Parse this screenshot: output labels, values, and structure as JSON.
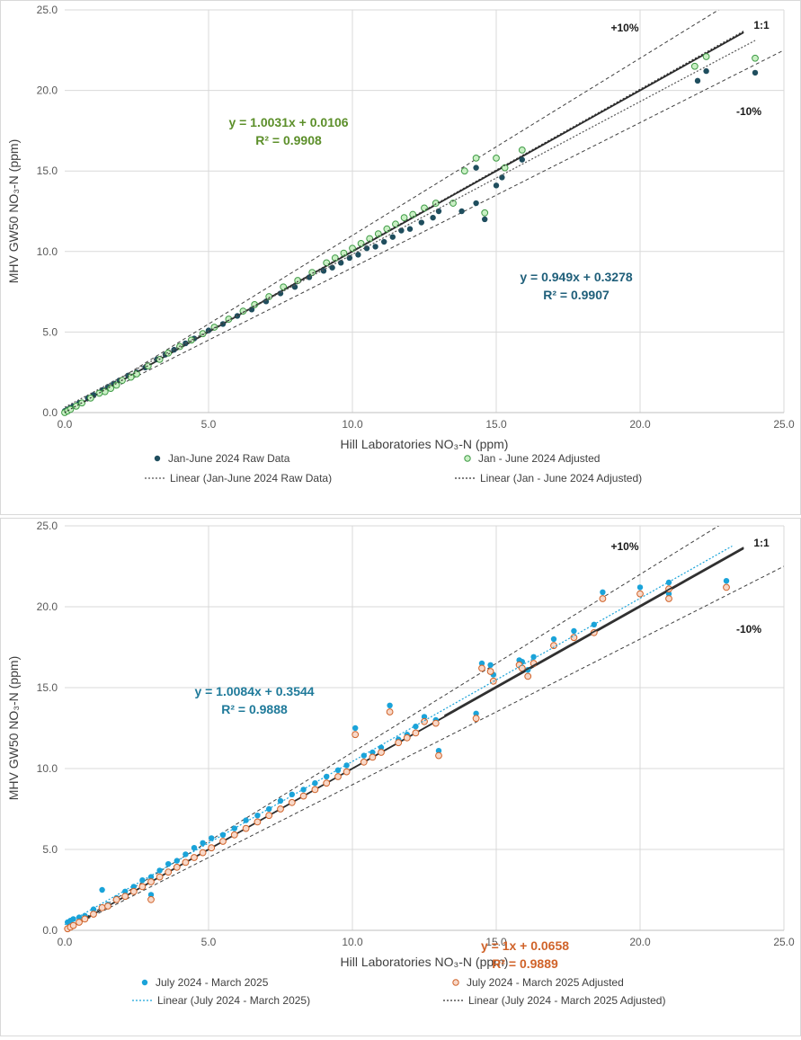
{
  "chart_data": [
    {
      "type": "scatter",
      "xlabel": "Hill Laboratories NO₃-N (ppm)",
      "ylabel": "MHV GW50 NO₃-N (ppm)",
      "xlim": [
        0,
        25
      ],
      "ylim": [
        0,
        25
      ],
      "x_ticks": [
        "0.0",
        "5.0",
        "10.0",
        "15.0",
        "20.0",
        "25.0"
      ],
      "y_ticks": [
        "0.0",
        "5.0",
        "10.0",
        "15.0",
        "20.0",
        "25.0"
      ],
      "grid": true,
      "legend_position": "bottom",
      "reference_labels": {
        "plus10": "+10%",
        "one_to_one": "1:1",
        "minus10": "-10%"
      },
      "equations": [
        {
          "line1": "y = 1.0031x + 0.0106",
          "line2": "R² = 0.9908",
          "color": "#5c8f2a"
        },
        {
          "line1": "y = 0.949x + 0.3278",
          "line2": "R² = 0.9907",
          "color": "#1f5f7a"
        }
      ],
      "legend": [
        {
          "label": "Jan-June 2024 Raw Data",
          "kind": "filled",
          "color": "#1f4e5e"
        },
        {
          "label": "Jan - June 2024 Adjusted",
          "kind": "hollow",
          "color": "#8fcf8f"
        },
        {
          "label": "Linear (Jan-June 2024 Raw Data)",
          "kind": "dotted",
          "color": "#555555"
        },
        {
          "label": "Linear (Jan - June 2024 Adjusted)",
          "kind": "dotted",
          "color": "#333333"
        }
      ],
      "series": [
        {
          "name": "Jan-June 2024 Raw Data",
          "x": [
            0.0,
            0.1,
            0.2,
            0.3,
            0.5,
            0.8,
            1.0,
            1.3,
            1.5,
            1.7,
            1.9,
            2.2,
            2.5,
            2.8,
            3.2,
            3.5,
            3.8,
            4.2,
            4.5,
            5.0,
            5.5,
            6.0,
            6.5,
            7.0,
            7.5,
            8.0,
            8.5,
            9.0,
            9.3,
            9.6,
            9.9,
            10.2,
            10.5,
            10.8,
            11.1,
            11.4,
            11.7,
            12.0,
            12.4,
            12.8,
            13.0,
            13.8,
            14.3,
            14.3,
            14.6,
            15.0,
            15.2,
            15.9,
            22.0,
            22.3,
            24.0
          ],
          "y": [
            0.1,
            0.2,
            0.3,
            0.4,
            0.6,
            0.9,
            1.1,
            1.4,
            1.6,
            1.8,
            2.0,
            2.3,
            2.5,
            2.8,
            3.3,
            3.6,
            3.9,
            4.3,
            4.6,
            5.1,
            5.5,
            6.0,
            6.4,
            6.9,
            7.4,
            7.8,
            8.4,
            8.8,
            9.0,
            9.3,
            9.6,
            9.8,
            10.2,
            10.3,
            10.6,
            10.9,
            11.3,
            11.4,
            11.8,
            12.1,
            12.5,
            12.5,
            13.0,
            15.2,
            12.0,
            14.1,
            14.6,
            15.7,
            20.6,
            21.2,
            21.1
          ]
        },
        {
          "name": "Jan - June 2024 Adjusted",
          "x": [
            0.0,
            0.1,
            0.2,
            0.4,
            0.6,
            0.9,
            1.2,
            1.4,
            1.6,
            1.8,
            2.0,
            2.3,
            2.5,
            2.9,
            3.3,
            3.6,
            4.0,
            4.4,
            4.8,
            5.2,
            5.7,
            6.2,
            6.6,
            7.1,
            7.6,
            8.1,
            8.6,
            9.1,
            9.4,
            9.7,
            10.0,
            10.3,
            10.6,
            10.9,
            11.2,
            11.5,
            11.8,
            12.1,
            12.5,
            12.9,
            13.5,
            13.9,
            14.3,
            14.6,
            15.0,
            15.3,
            15.9,
            21.9,
            22.3,
            24.0
          ],
          "y": [
            0.0,
            0.1,
            0.2,
            0.4,
            0.6,
            0.9,
            1.2,
            1.3,
            1.5,
            1.7,
            2.0,
            2.2,
            2.4,
            2.9,
            3.3,
            3.7,
            4.1,
            4.5,
            4.9,
            5.3,
            5.8,
            6.3,
            6.7,
            7.2,
            7.8,
            8.2,
            8.7,
            9.3,
            9.6,
            9.9,
            10.2,
            10.5,
            10.8,
            11.1,
            11.4,
            11.7,
            12.1,
            12.3,
            12.7,
            13.0,
            13.0,
            15.0,
            15.8,
            12.4,
            15.8,
            15.2,
            16.3,
            21.5,
            22.1,
            22.0
          ]
        }
      ],
      "trendlines": [
        {
          "name": "Linear (Jan-June 2024 Raw Data)",
          "slope": 0.949,
          "intercept": 0.3278
        },
        {
          "name": "Linear (Jan - June 2024 Adjusted)",
          "slope": 1.0031,
          "intercept": 0.0106
        }
      ]
    },
    {
      "type": "scatter",
      "xlabel": "Hill Laboratories NO₃-N (ppm)",
      "ylabel": "MHV GW50 NO₃-N (ppm)",
      "xlim": [
        0,
        25
      ],
      "ylim": [
        0,
        25
      ],
      "x_ticks": [
        "0.0",
        "5.0",
        "10.0",
        "15.0",
        "20.0",
        "25.0"
      ],
      "y_ticks": [
        "0.0",
        "5.0",
        "10.0",
        "15.0",
        "20.0",
        "25.0"
      ],
      "grid": true,
      "legend_position": "bottom",
      "reference_labels": {
        "plus10": "+10%",
        "one_to_one": "1:1",
        "minus10": "-10%"
      },
      "equations": [
        {
          "line1": "y = 1.0084x + 0.3544",
          "line2": "R² = 0.9888",
          "color": "#1f7a9a"
        },
        {
          "line1": "y = 1x + 0.0658",
          "line2": "R² = 0.9889",
          "color": "#d0632a"
        }
      ],
      "legend": [
        {
          "label": "July 2024 - March 2025",
          "kind": "filled",
          "color": "#1aa3d9"
        },
        {
          "label": "July 2024 - March 2025 Adjusted",
          "kind": "hollow",
          "color": "#e58a5e"
        },
        {
          "label": "Linear (July 2024 - March 2025)",
          "kind": "dotted",
          "color": "#1aa3d9"
        },
        {
          "label": "Linear (July 2024 - March 2025 Adjusted)",
          "kind": "dotted",
          "color": "#333333"
        }
      ],
      "series": [
        {
          "name": "July 2024 - March 2025",
          "x": [
            0.1,
            0.2,
            0.3,
            0.5,
            0.7,
            1.0,
            1.3,
            1.5,
            1.8,
            2.1,
            2.4,
            2.7,
            3.0,
            3.0,
            3.3,
            3.6,
            3.9,
            4.2,
            4.5,
            4.8,
            5.1,
            5.5,
            5.9,
            6.3,
            6.7,
            7.1,
            7.5,
            7.9,
            8.3,
            8.7,
            9.1,
            9.5,
            9.8,
            10.1,
            10.4,
            10.7,
            11.0,
            11.3,
            11.6,
            11.9,
            12.2,
            12.5,
            12.9,
            13.0,
            14.3,
            14.5,
            14.8,
            14.9,
            15.8,
            15.9,
            16.1,
            16.3,
            17.0,
            17.7,
            18.4,
            18.7,
            20.0,
            21.0,
            21.0,
            23.0
          ],
          "y": [
            0.5,
            0.6,
            0.7,
            0.8,
            0.9,
            1.3,
            2.5,
            1.6,
            2.0,
            2.4,
            2.7,
            3.1,
            3.3,
            2.2,
            3.7,
            4.1,
            4.3,
            4.7,
            5.1,
            5.4,
            5.7,
            5.9,
            6.3,
            6.8,
            7.1,
            7.5,
            8.0,
            8.4,
            8.7,
            9.1,
            9.5,
            9.9,
            10.2,
            12.5,
            10.8,
            11.0,
            11.3,
            13.9,
            11.8,
            12.1,
            12.6,
            13.2,
            13.0,
            11.1,
            13.4,
            16.5,
            16.4,
            15.8,
            16.7,
            16.6,
            16.1,
            16.9,
            18.0,
            18.5,
            18.9,
            20.9,
            21.2,
            21.5,
            20.8,
            21.6
          ]
        },
        {
          "name": "July 2024 - March 2025 Adjusted",
          "x": [
            0.1,
            0.2,
            0.3,
            0.5,
            0.7,
            1.0,
            1.3,
            1.5,
            1.8,
            2.1,
            2.4,
            2.7,
            3.0,
            3.0,
            3.3,
            3.6,
            3.9,
            4.2,
            4.5,
            4.8,
            5.1,
            5.5,
            5.9,
            6.3,
            6.7,
            7.1,
            7.5,
            7.9,
            8.3,
            8.7,
            9.1,
            9.5,
            9.8,
            10.1,
            10.4,
            10.7,
            11.0,
            11.3,
            11.6,
            11.9,
            12.2,
            12.5,
            12.9,
            13.0,
            14.3,
            14.5,
            14.8,
            14.9,
            15.8,
            15.9,
            16.1,
            16.3,
            17.0,
            17.7,
            18.4,
            18.7,
            20.0,
            21.0,
            21.0,
            23.0
          ],
          "y": [
            0.1,
            0.2,
            0.3,
            0.5,
            0.7,
            1.0,
            1.4,
            1.5,
            1.9,
            2.1,
            2.4,
            2.7,
            3.0,
            1.9,
            3.3,
            3.6,
            3.9,
            4.2,
            4.5,
            4.8,
            5.1,
            5.5,
            5.9,
            6.3,
            6.7,
            7.1,
            7.5,
            7.9,
            8.3,
            8.7,
            9.1,
            9.5,
            9.8,
            12.1,
            10.4,
            10.7,
            11.0,
            13.5,
            11.6,
            11.9,
            12.2,
            12.9,
            12.8,
            10.8,
            13.1,
            16.2,
            16.0,
            15.4,
            16.4,
            16.2,
            15.7,
            16.5,
            17.6,
            18.1,
            18.4,
            20.5,
            20.8,
            21.1,
            20.5,
            21.2
          ]
        }
      ],
      "trendlines": [
        {
          "name": "Linear (July 2024 - March 2025)",
          "slope": 1.0084,
          "intercept": 0.3544
        },
        {
          "name": "Linear (July 2024 - March 2025 Adjusted)",
          "slope": 1.0,
          "intercept": 0.0658
        }
      ]
    }
  ]
}
